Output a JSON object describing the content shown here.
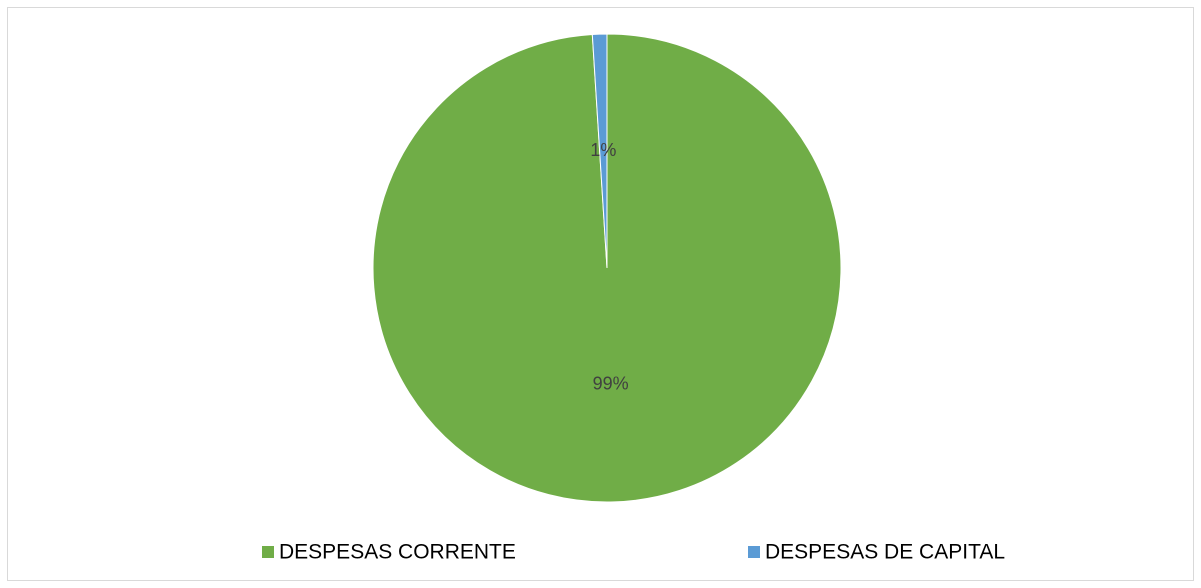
{
  "chart_data": {
    "type": "pie",
    "categories": [
      "DESPESAS CORRENTE",
      "DESPESAS DE CAPITAL"
    ],
    "values": [
      99,
      1
    ],
    "value_labels": [
      "99%",
      "1%"
    ],
    "colors": [
      "#70ad47",
      "#5b9bd5"
    ],
    "legend": "bottom"
  }
}
